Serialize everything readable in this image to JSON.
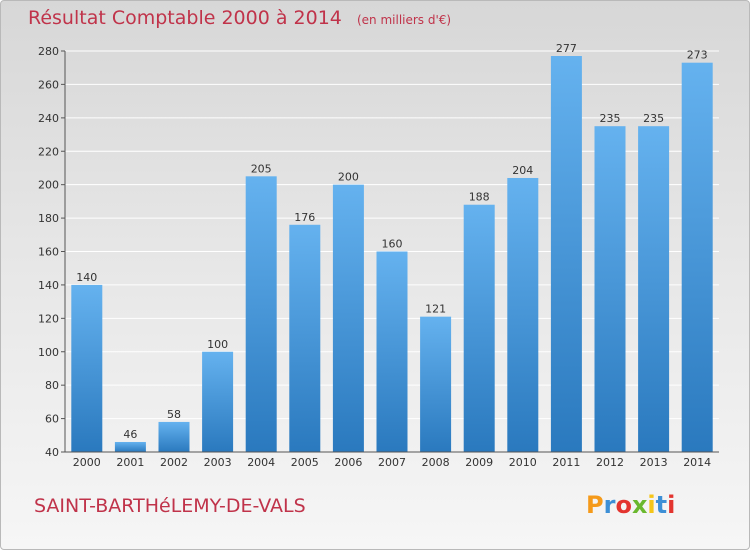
{
  "title": "Résultat Comptable 2000 à 2014",
  "subtitle": "(en milliers d'€)",
  "commune": "SAINT-BARTHéLEMY-DE-VALS",
  "logo": {
    "letters": [
      "P",
      "r",
      "o",
      "x",
      "i",
      "t",
      "i"
    ],
    "colors": [
      "#f59a1a",
      "#3d8fd6",
      "#e3342f",
      "#6ab82e",
      "#f5c518",
      "#3d8fd6",
      "#e3342f"
    ]
  },
  "colors": {
    "bar_top": "#65b2ef",
    "bar_bottom": "#2a79be",
    "title": "#c0334a",
    "grid": "#ffffff"
  },
  "chart_data": {
    "type": "bar",
    "categories": [
      "2000",
      "2001",
      "2002",
      "2003",
      "2004",
      "2005",
      "2006",
      "2007",
      "2008",
      "2009",
      "2010",
      "2011",
      "2012",
      "2013",
      "2014"
    ],
    "values": [
      140,
      46,
      58,
      100,
      205,
      176,
      200,
      160,
      121,
      188,
      204,
      277,
      235,
      235,
      273
    ],
    "ylim": [
      40,
      280
    ],
    "yticks": [
      40,
      60,
      80,
      100,
      120,
      140,
      160,
      180,
      200,
      220,
      240,
      260,
      280
    ],
    "grid": true,
    "xlabel": "",
    "ylabel": ""
  }
}
